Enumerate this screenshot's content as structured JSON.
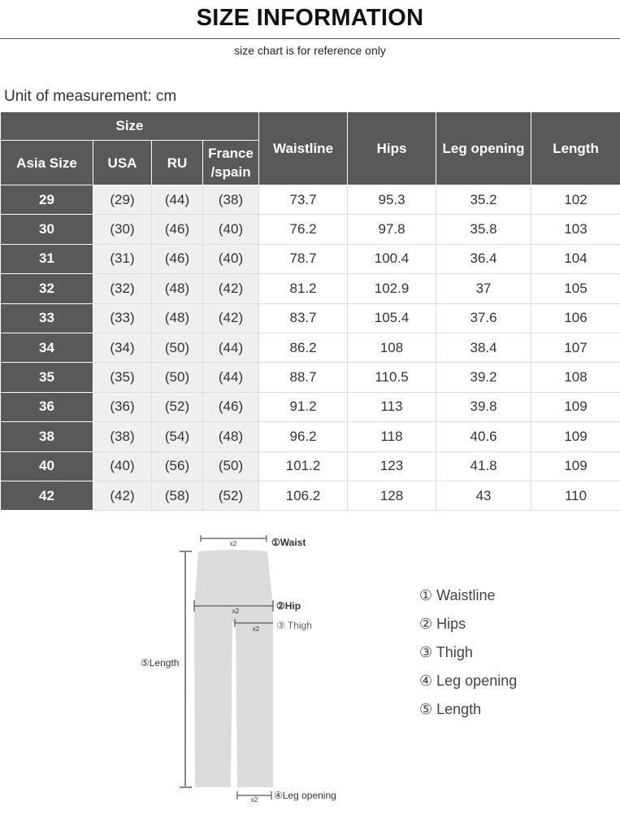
{
  "title": "SIZE INFORMATION",
  "subtitle": "size chart is for reference only",
  "unit": "Unit of measurement: cm",
  "table": {
    "group_header": "Size",
    "headers": [
      "Asia Size",
      "USA",
      "RU",
      "France /spain",
      "Waistline",
      "Hips",
      "Leg opening",
      "Length"
    ],
    "rows": [
      [
        "29",
        "(29)",
        "(44)",
        "(38)",
        "73.7",
        "95.3",
        "35.2",
        "102"
      ],
      [
        "30",
        "(30)",
        "(46)",
        "(40)",
        "76.2",
        "97.8",
        "35.8",
        "103"
      ],
      [
        "31",
        "(31)",
        "(46)",
        "(40)",
        "78.7",
        "100.4",
        "36.4",
        "104"
      ],
      [
        "32",
        "(32)",
        "(48)",
        "(42)",
        "81.2",
        "102.9",
        "37",
        "105"
      ],
      [
        "33",
        "(33)",
        "(48)",
        "(42)",
        "83.7",
        "105.4",
        "37.6",
        "106"
      ],
      [
        "34",
        "(34)",
        "(50)",
        "(44)",
        "86.2",
        "108",
        "38.4",
        "107"
      ],
      [
        "35",
        "(35)",
        "(50)",
        "(44)",
        "88.7",
        "110.5",
        "39.2",
        "108"
      ],
      [
        "36",
        "(36)",
        "(52)",
        "(46)",
        "91.2",
        "113",
        "39.8",
        "109"
      ],
      [
        "38",
        "(38)",
        "(54)",
        "(48)",
        "96.2",
        "118",
        "40.6",
        "109"
      ],
      [
        "40",
        "(40)",
        "(56)",
        "(50)",
        "101.2",
        "123",
        "41.8",
        "109"
      ],
      [
        "42",
        "(42)",
        "(58)",
        "(52)",
        "106.2",
        "128",
        "43",
        "110"
      ]
    ]
  },
  "diagram": {
    "labels": {
      "waist": "①Waist",
      "hip": "②Hip",
      "thigh": "③ Thigh",
      "leg": "④Leg opening",
      "length": "⑤Length",
      "x2": "x2"
    }
  },
  "legend": [
    "① Waistline",
    "② Hips",
    "③ Thigh",
    "④ Leg opening",
    "⑤ Length"
  ]
}
